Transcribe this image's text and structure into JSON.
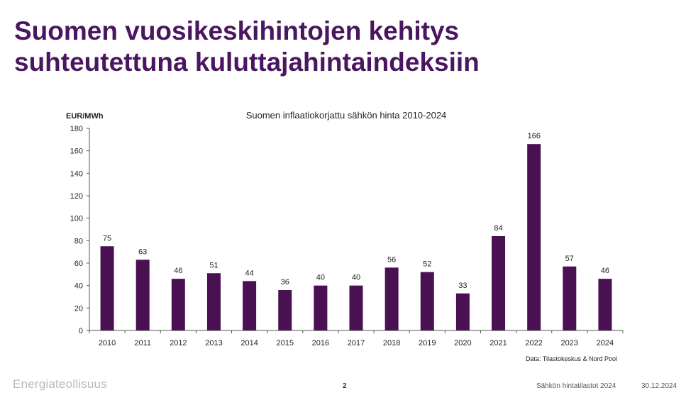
{
  "slide": {
    "title_line1": "Suomen vuosikeskihintojen kehitys",
    "title_line2": "suhteutettuna kuluttajahintaindeksiin"
  },
  "footer": {
    "logo": "Energiateollisuus",
    "page_number": "2",
    "document": "Sähkön hintatilastot 2024",
    "date": "30.12.2024"
  },
  "colors": {
    "bar": "#4a1152",
    "title": "#4a1660"
  },
  "chart_data": {
    "type": "bar",
    "title": "Suomen inflaatiokorjattu sähkön hinta 2010-2024",
    "ylabel": "EUR/MWh",
    "xlabel": "",
    "source": "Data: Tilastokeskus & Nord Pool",
    "ylim": [
      0,
      180
    ],
    "yticks": [
      0,
      20,
      40,
      60,
      80,
      100,
      120,
      140,
      160,
      180
    ],
    "categories": [
      "2010",
      "2011",
      "2012",
      "2013",
      "2014",
      "2015",
      "2016",
      "2017",
      "2018",
      "2019",
      "2020",
      "2021",
      "2022",
      "2023",
      "2024"
    ],
    "values": [
      75,
      63,
      46,
      51,
      44,
      36,
      40,
      40,
      56,
      52,
      33,
      84,
      166,
      57,
      46
    ]
  }
}
